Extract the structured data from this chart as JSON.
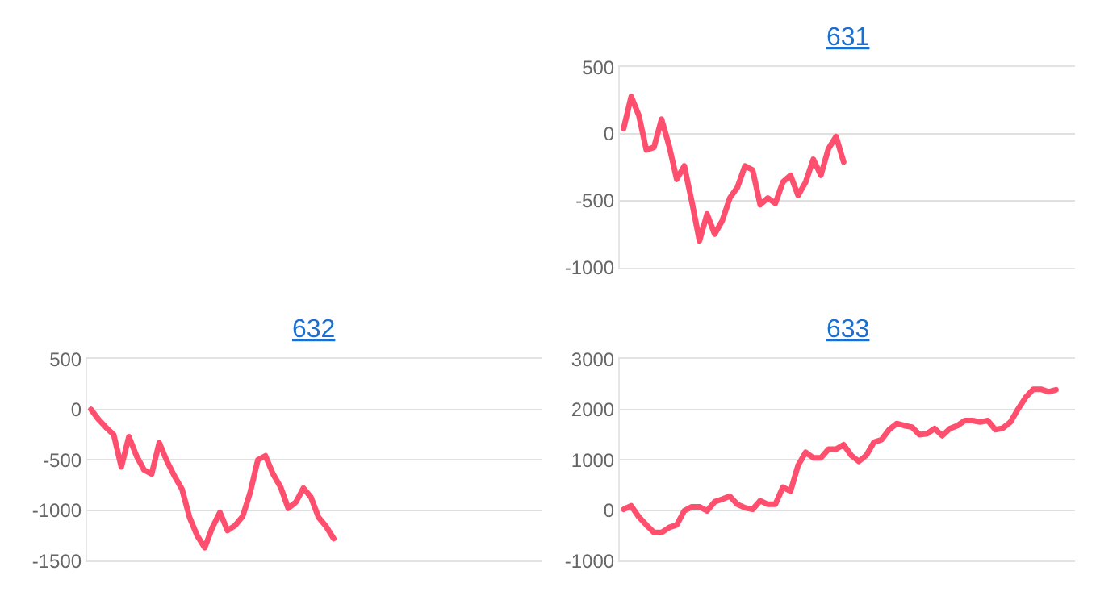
{
  "chart_data": [
    {
      "type": "line",
      "title": "631",
      "categories": [
        null,
        null,
        null,
        null,
        null,
        null,
        null,
        null,
        null,
        null,
        null,
        null,
        null,
        null,
        null,
        null,
        null,
        null,
        null,
        null,
        null,
        null,
        null,
        null,
        null,
        null,
        null,
        null,
        null,
        null,
        null,
        null,
        null,
        null,
        null,
        null,
        null,
        null,
        null,
        null,
        null,
        null,
        null,
        null,
        null,
        null,
        null,
        null,
        null,
        null,
        null,
        null,
        null,
        null,
        null,
        null,
        null,
        null,
        null,
        null
      ],
      "series": [
        {
          "color": "#ff4f6e",
          "values": [
            40,
            280,
            140,
            -120,
            -100,
            110,
            -90,
            -340,
            -240,
            -510,
            -800,
            -600,
            -750,
            -650,
            -480,
            -400,
            -240,
            -270,
            -530,
            -480,
            -520,
            -360,
            -310,
            -460,
            -360,
            -190,
            -310,
            -110,
            -20,
            -210,
            null,
            null,
            null,
            null,
            null,
            null,
            null,
            null,
            null,
            null,
            null,
            null,
            null,
            null,
            null,
            null,
            null,
            null,
            null,
            null,
            null,
            null,
            null,
            null,
            null,
            null,
            null,
            null,
            null,
            null
          ]
        }
      ],
      "ylim": [
        -1000,
        500
      ],
      "yticks": [
        -1000,
        -500,
        0,
        500
      ],
      "grid": "y",
      "tick_labels": "y",
      "legend": false,
      "marker": "none",
      "line_style": "solid"
    },
    {
      "type": "line",
      "title": "632",
      "categories": [
        null,
        null,
        null,
        null,
        null,
        null,
        null,
        null,
        null,
        null,
        null,
        null,
        null,
        null,
        null,
        null,
        null,
        null,
        null,
        null,
        null,
        null,
        null,
        null,
        null,
        null,
        null,
        null,
        null,
        null,
        null,
        null,
        null,
        null,
        null,
        null,
        null,
        null,
        null,
        null,
        null,
        null,
        null,
        null,
        null,
        null,
        null,
        null,
        null,
        null,
        null,
        null,
        null,
        null,
        null,
        null,
        null,
        null,
        null,
        null
      ],
      "series": [
        {
          "color": "#ff4f6e",
          "values": [
            0,
            -100,
            -180,
            -250,
            -570,
            -270,
            -460,
            -600,
            -640,
            -330,
            -510,
            -660,
            -790,
            -1070,
            -1250,
            -1370,
            -1170,
            -1020,
            -1200,
            -1150,
            -1060,
            -820,
            -500,
            -460,
            -640,
            -770,
            -980,
            -920,
            -780,
            -870,
            -1070,
            -1160,
            -1280,
            null,
            null,
            null,
            null,
            null,
            null,
            null,
            null,
            null,
            null,
            null,
            null,
            null,
            null,
            null,
            null,
            null,
            null,
            null,
            null,
            null,
            null,
            null,
            null,
            null,
            null,
            null
          ]
        }
      ],
      "ylim": [
        -1500,
        500
      ],
      "yticks": [
        -1500,
        -1000,
        -500,
        0,
        500
      ],
      "grid": "y",
      "tick_labels": "y",
      "legend": false,
      "marker": "none",
      "line_style": "solid"
    },
    {
      "type": "line",
      "title": "633",
      "categories": [
        null,
        null,
        null,
        null,
        null,
        null,
        null,
        null,
        null,
        null,
        null,
        null,
        null,
        null,
        null,
        null,
        null,
        null,
        null,
        null,
        null,
        null,
        null,
        null,
        null,
        null,
        null,
        null,
        null,
        null,
        null,
        null,
        null,
        null,
        null,
        null,
        null,
        null,
        null,
        null,
        null,
        null,
        null,
        null,
        null,
        null,
        null,
        null,
        null,
        null,
        null,
        null,
        null,
        null,
        null,
        null,
        null,
        null,
        null,
        null
      ],
      "series": [
        {
          "color": "#ff4f6e",
          "values": [
            20,
            90,
            -130,
            -290,
            -440,
            -440,
            -340,
            -290,
            -10,
            70,
            70,
            -10,
            170,
            220,
            280,
            120,
            50,
            20,
            190,
            120,
            120,
            460,
            380,
            890,
            1150,
            1040,
            1040,
            1210,
            1210,
            1300,
            1090,
            970,
            1090,
            1350,
            1400,
            1600,
            1720,
            1680,
            1650,
            1500,
            1520,
            1620,
            1480,
            1620,
            1680,
            1780,
            1780,
            1750,
            1780,
            1600,
            1630,
            1750,
            2010,
            2240,
            2400,
            2400,
            2350,
            2390,
            null,
            null
          ]
        }
      ],
      "ylim": [
        -1000,
        3000
      ],
      "yticks": [
        -1000,
        0,
        1000,
        2000,
        3000
      ],
      "grid": "y",
      "tick_labels": "y",
      "legend": false,
      "marker": "none",
      "line_style": "solid"
    }
  ]
}
